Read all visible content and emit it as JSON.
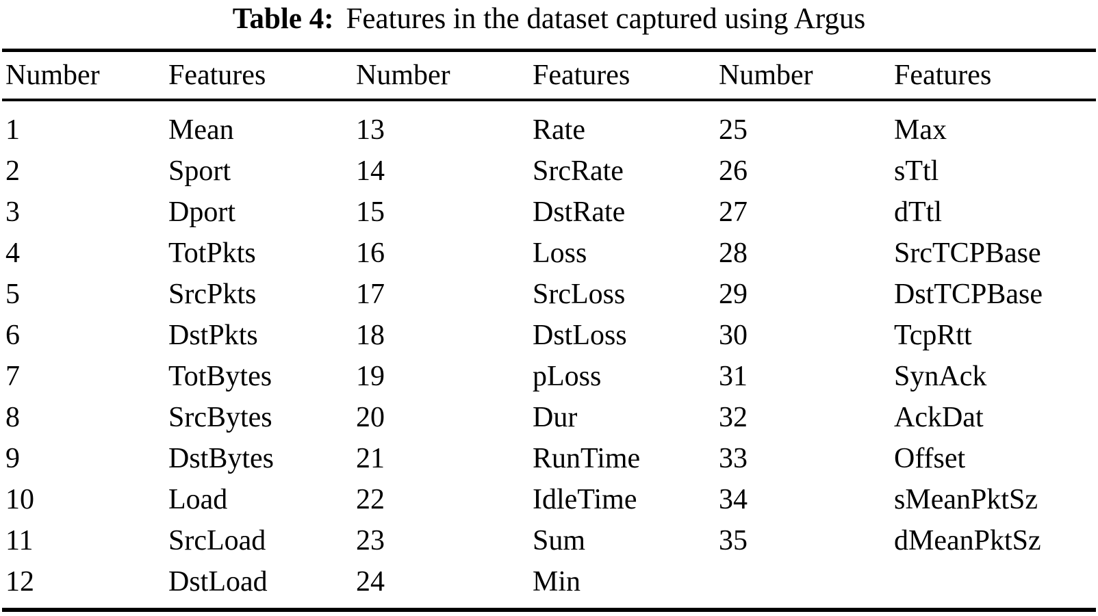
{
  "caption": {
    "label": "Table 4:",
    "text": "Features in the dataset captured using Argus"
  },
  "table": {
    "headers": [
      "Number",
      "Features",
      "Number",
      "Features",
      "Number",
      "Features"
    ],
    "rows": [
      [
        "1",
        "Mean",
        "13",
        "Rate",
        "25",
        "Max"
      ],
      [
        "2",
        "Sport",
        "14",
        "SrcRate",
        "26",
        "sTtl"
      ],
      [
        "3",
        "Dport",
        "15",
        "DstRate",
        "27",
        "dTtl"
      ],
      [
        "4",
        "TotPkts",
        "16",
        "Loss",
        "28",
        "SrcTCPBase"
      ],
      [
        "5",
        "SrcPkts",
        "17",
        "SrcLoss",
        "29",
        "DstTCPBase"
      ],
      [
        "6",
        "DstPkts",
        "18",
        "DstLoss",
        "30",
        "TcpRtt"
      ],
      [
        "7",
        "TotBytes",
        "19",
        "pLoss",
        "31",
        "SynAck"
      ],
      [
        "8",
        "SrcBytes",
        "20",
        "Dur",
        "32",
        "AckDat"
      ],
      [
        "9",
        "DstBytes",
        "21",
        "RunTime",
        "33",
        "Offset"
      ],
      [
        "10",
        "Load",
        "22",
        "IdleTime",
        "34",
        "sMeanPktSz"
      ],
      [
        "11",
        "SrcLoad",
        "23",
        "Sum",
        "35",
        "dMeanPktSz"
      ],
      [
        "12",
        "DstLoad",
        "24",
        "Min",
        "",
        ""
      ]
    ]
  },
  "colors": {
    "background": "#ffffff",
    "text": "#000000",
    "rule": "#000000"
  }
}
